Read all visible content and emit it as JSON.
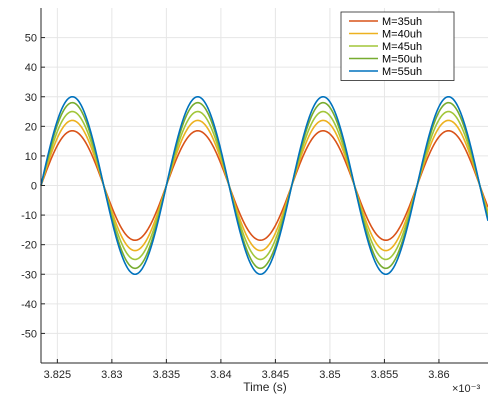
{
  "chart_data": {
    "type": "line",
    "title": "",
    "xlabel": "Time (s)",
    "ylabel": "",
    "x_exponent_label": "×10⁻³",
    "x_multiplier": 0.001,
    "xlim": [
      3.8235,
      3.8645
    ],
    "ylim": [
      -60,
      60
    ],
    "xticks": [
      3.825,
      3.83,
      3.835,
      3.84,
      3.845,
      3.85,
      3.855,
      3.86
    ],
    "xtick_labels": [
      "3.825",
      "3.83",
      "3.835",
      "3.84",
      "3.845",
      "3.85",
      "3.855",
      "3.86"
    ],
    "yticks": [
      50,
      40,
      30,
      20,
      10,
      0,
      -10,
      -20,
      -30,
      -40,
      -50
    ],
    "ytick_labels": [
      "50",
      "40",
      "30",
      "20",
      "10",
      "0",
      "-10",
      "-20",
      "-30",
      "-40",
      "-50"
    ],
    "grid": true,
    "legend_position": "top-right",
    "waveform": "sine",
    "zero_crossings_rising": [
      3.8235,
      3.835,
      3.8465,
      3.858
    ],
    "zero_crossings_falling": [
      3.8294,
      3.8409,
      3.8524,
      3.8639
    ],
    "series": [
      {
        "name": "M=35uh",
        "color": "#D95319",
        "amplitude": 18.5
      },
      {
        "name": "M=40uh",
        "color": "#EDB120",
        "amplitude": 22
      },
      {
        "name": "M=45uh",
        "color": "#A2C639",
        "amplitude": 25
      },
      {
        "name": "M=50uh",
        "color": "#77AC30",
        "amplitude": 28
      },
      {
        "name": "M=55uh",
        "color": "#0072BD",
        "amplitude": 30
      }
    ]
  }
}
